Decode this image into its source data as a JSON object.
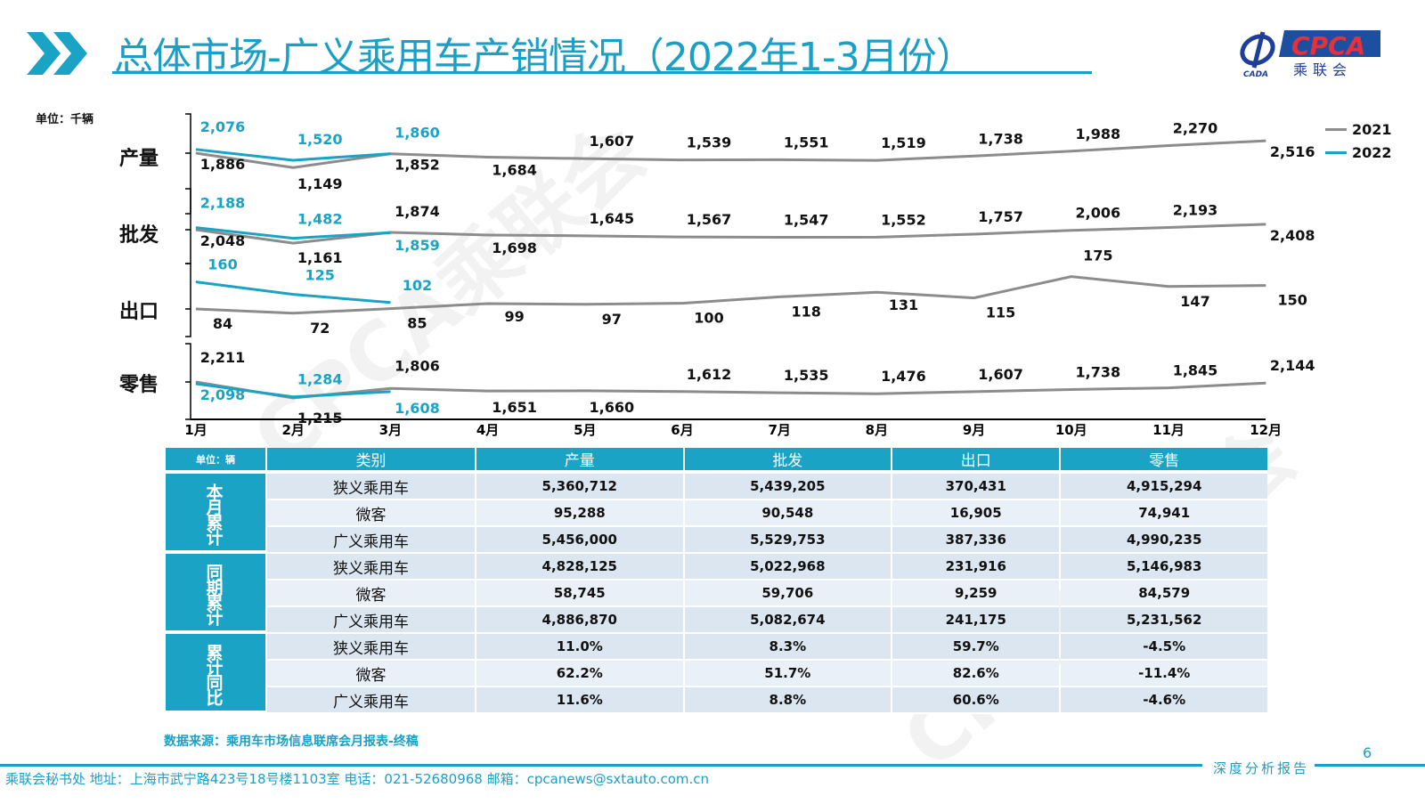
{
  "header": {
    "title": "总体市场-广义乘用车产销情况（2022年1-3月份）",
    "logo_text": "CPCA",
    "logo_sub": "乘联会",
    "logo_small": "CADA"
  },
  "watermark": "CPCA乘联会",
  "chart_data": {
    "type": "line",
    "unit": "单位：千辆",
    "categories": [
      "1月",
      "2月",
      "3月",
      "4月",
      "5月",
      "6月",
      "7月",
      "8月",
      "9月",
      "10月",
      "11月",
      "12月"
    ],
    "legend": [
      "2021",
      "2022"
    ],
    "legend_position": "right",
    "colors": {
      "2021": "#8c8c8c",
      "2022": "#1ba3c6"
    },
    "panels": [
      {
        "name": "产量",
        "series": [
          {
            "name": "2021",
            "values": [
              1886,
              1149,
              1852,
              1684,
              1607,
              1539,
              1551,
              1519,
              1738,
              1988,
              2270,
              2516
            ]
          },
          {
            "name": "2022",
            "values": [
              2076,
              1520,
              1860
            ]
          }
        ]
      },
      {
        "name": "批发",
        "series": [
          {
            "name": "2021",
            "values": [
              2048,
              1161,
              1874,
              1698,
              1645,
              1567,
              1547,
              1552,
              1757,
              2006,
              2193,
              2408
            ]
          },
          {
            "name": "2022",
            "values": [
              2188,
              1482,
              1859
            ]
          }
        ]
      },
      {
        "name": "出口",
        "series": [
          {
            "name": "2021",
            "values": [
              84,
              72,
              85,
              99,
              97,
              100,
              118,
              131,
              115,
              175,
              147,
              150
            ]
          },
          {
            "name": "2022",
            "values": [
              160,
              125,
              102
            ]
          }
        ]
      },
      {
        "name": "零售",
        "series": [
          {
            "name": "2021",
            "values": [
              2211,
              1215,
              1806,
              1651,
              1660,
              1612,
              1535,
              1476,
              1607,
              1738,
              1845,
              2144
            ]
          },
          {
            "name": "2022",
            "values": [
              2098,
              1284,
              1608
            ]
          }
        ]
      }
    ]
  },
  "table": {
    "unit": "单位：辆",
    "headers": [
      "类别",
      "产量",
      "批发",
      "出口",
      "零售"
    ],
    "groups": [
      {
        "label": "本月累计",
        "rows": [
          [
            "狭义乘用车",
            "5,360,712",
            "5,439,205",
            "370,431",
            "4,915,294"
          ],
          [
            "微客",
            "95,288",
            "90,548",
            "16,905",
            "74,941"
          ],
          [
            "广义乘用车",
            "5,456,000",
            "5,529,753",
            "387,336",
            "4,990,235"
          ]
        ]
      },
      {
        "label": "同期累计",
        "rows": [
          [
            "狭义乘用车",
            "4,828,125",
            "5,022,968",
            "231,916",
            "5,146,983"
          ],
          [
            "微客",
            "58,745",
            "59,706",
            "9,259",
            "84,579"
          ],
          [
            "广义乘用车",
            "4,886,870",
            "5,082,674",
            "241,175",
            "5,231,562"
          ]
        ]
      },
      {
        "label": "累计同比",
        "rows": [
          [
            "狭义乘用车",
            "11.0%",
            "8.3%",
            "59.7%",
            "-4.5%"
          ],
          [
            "微客",
            "62.2%",
            "51.7%",
            "82.6%",
            "-11.4%"
          ],
          [
            "广义乘用车",
            "11.6%",
            "8.8%",
            "60.6%",
            "-4.6%"
          ]
        ]
      }
    ]
  },
  "source": "数据来源：乘用车市场信息联席会月报表-终稿",
  "page_number": "6",
  "report_type": "深度分析报告",
  "footer": "乘联会秘书处  地址：上海市武宁路423号18号楼1103室  电话：021-52680968  邮箱：cpcanews@sxtauto.com.cn"
}
